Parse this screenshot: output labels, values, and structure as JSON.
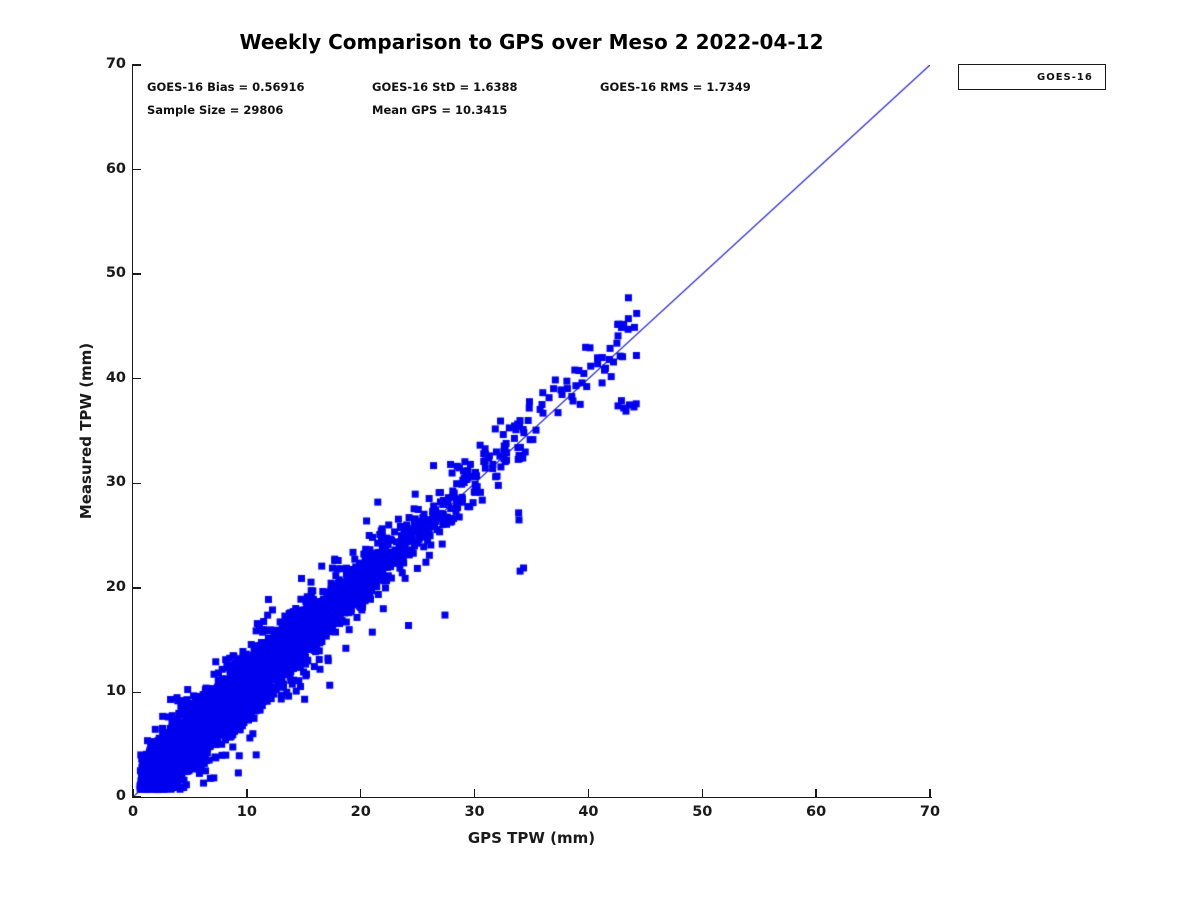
{
  "title": "Weekly Comparison to GPS over Meso 2 2022-04-12",
  "stats": {
    "bias": "GOES-16 Bias = 0.56916",
    "std": "GOES-16 StD = 1.6388",
    "rms": "GOES-16 RMS = 1.7349",
    "sample": "Sample Size = 29806",
    "mean": "Mean GPS = 10.3415"
  },
  "colors": {
    "marker": "#0000EE",
    "reference_line": "#1515CC",
    "axis": "#1a1a1a",
    "background": "#ffffff"
  },
  "chart_data": {
    "type": "scatter",
    "title": "Weekly Comparison to GPS over Meso 2 2022-04-12",
    "xlabel": "GPS TPW (mm)",
    "ylabel": "Measured TPW (mm)",
    "xlim": [
      0,
      70
    ],
    "ylim": [
      0,
      70
    ],
    "xticks": [
      0,
      10,
      20,
      30,
      40,
      50,
      60,
      70
    ],
    "yticks": [
      0,
      10,
      20,
      30,
      40,
      50,
      60,
      70
    ],
    "grid": false,
    "legend": {
      "position": "outside-top-right",
      "entries": [
        {
          "label": "GOES-16",
          "marker": "square",
          "color": "#0000EE"
        }
      ]
    },
    "reference_line": {
      "from": [
        0,
        0
      ],
      "to": [
        70,
        70
      ],
      "color": "#1515CC",
      "width": 1.2
    },
    "series": [
      {
        "name": "GOES-16",
        "marker": "square",
        "color": "#0000EE",
        "sample_size": 29806,
        "bias": 0.56916,
        "std": 1.6388,
        "rms": 1.7349,
        "mean_gps": 10.3415,
        "x_range": [
          0.6,
          44.5
        ],
        "y_range": [
          1.3,
          45.3
        ],
        "relationship": "y = x + bias with gaussian scatter of std 1.6388 about the 1:1 line"
      }
    ],
    "render": {
      "seed": 20220412,
      "n_render_points": 4400,
      "x_exp_scale": 6.9,
      "x_min": 0.6,
      "x_max": 44.5,
      "y_bias": 0.569,
      "y_sigma_core": 1.35,
      "y_sigma_tail": 2.6,
      "tail_fraction": 0.1,
      "y_min": 0.7,
      "marker_px": 7,
      "outliers": [
        [
          34.0,
          21.6
        ],
        [
          34.3,
          21.9
        ],
        [
          27.4,
          17.4
        ],
        [
          24.2,
          16.4
        ],
        [
          42.6,
          37.4
        ],
        [
          43.1,
          37.2
        ],
        [
          43.6,
          37.5
        ],
        [
          44.0,
          37.3
        ],
        [
          42.9,
          37.9
        ],
        [
          43.3,
          36.9
        ],
        [
          44.2,
          37.6
        ],
        [
          42.6,
          44.1
        ],
        [
          42.9,
          44.9
        ],
        [
          43.1,
          45.2
        ],
        [
          42.5,
          43.4
        ],
        [
          41.9,
          42.9
        ],
        [
          42.2,
          41.6
        ],
        [
          41.5,
          41.0
        ],
        [
          43.0,
          42.1
        ],
        [
          42.0,
          40.2
        ],
        [
          40.8,
          42.0
        ],
        [
          41.2,
          39.6
        ],
        [
          40.2,
          41.2
        ],
        [
          39.6,
          40.5
        ],
        [
          14.8,
          20.9
        ],
        [
          33.9,
          26.5
        ],
        [
          21.5,
          28.2
        ]
      ]
    }
  }
}
